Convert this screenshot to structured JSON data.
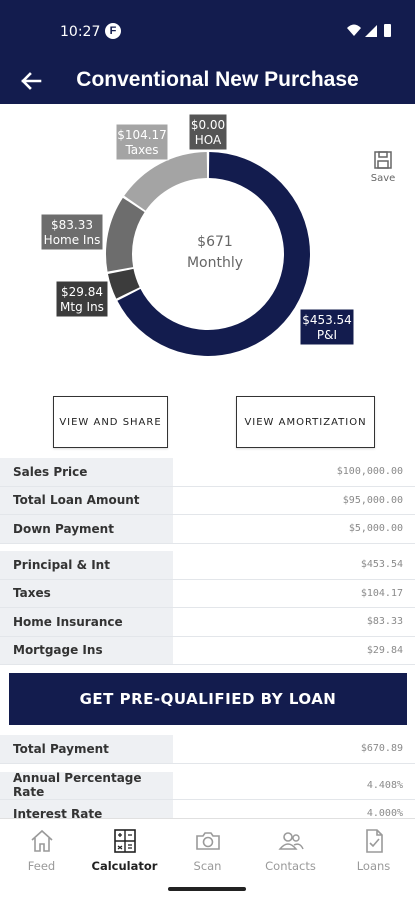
{
  "status_bar": {
    "time": "10:27",
    "app_icon_letter": "F"
  },
  "header": {
    "title": "Conventional New Purchase"
  },
  "chart_data": {
    "type": "pie",
    "center_amount": "$671",
    "center_label": "Monthly",
    "slices": [
      {
        "label": "P&I",
        "value_text": "$453.54",
        "value": 453.54,
        "color": "#131c4e"
      },
      {
        "label": "Mtg Ins",
        "value_text": "$29.84",
        "value": 29.84,
        "color": "#3c3c3c"
      },
      {
        "label": "Home Ins",
        "value_text": "$83.33",
        "value": 83.33,
        "color": "#6d6d6d"
      },
      {
        "label": "Taxes",
        "value_text": "$104.17",
        "value": 104.17,
        "color": "#a4a4a4"
      },
      {
        "label": "HOA",
        "value_text": "$0.00",
        "value": 0.0,
        "color": "#555555"
      }
    ]
  },
  "save": {
    "label": "Save"
  },
  "actions": {
    "view_share": "VIEW AND SHARE",
    "view_amortization": "VIEW AMORTIZATION"
  },
  "loan_table": [
    {
      "label": "Sales Price",
      "value": "$100,000.00"
    },
    {
      "label": "Total Loan Amount",
      "value": "$95,000.00"
    },
    {
      "label": "Down Payment",
      "value": "$5,000.00"
    }
  ],
  "payment_table": [
    {
      "label": "Principal & Int",
      "value": "$453.54"
    },
    {
      "label": "Taxes",
      "value": "$104.17"
    },
    {
      "label": "Home Insurance",
      "value": "$83.33"
    },
    {
      "label": "Mortgage Ins",
      "value": "$29.84"
    }
  ],
  "prequal": {
    "label": "GET PRE-QUALIFIED BY LOAN"
  },
  "summary_table": [
    {
      "label": "Total Payment",
      "value": "$670.89"
    },
    {
      "label": "Annual Percentage Rate",
      "value": "4.408%"
    },
    {
      "label": "Interest Rate",
      "value": "4.000%"
    }
  ],
  "nav": [
    {
      "label": "Feed",
      "icon": "home-icon"
    },
    {
      "label": "Calculator",
      "icon": "calculator-icon"
    },
    {
      "label": "Scan",
      "icon": "camera-icon"
    },
    {
      "label": "Contacts",
      "icon": "contacts-icon"
    },
    {
      "label": "Loans",
      "icon": "document-check-icon"
    }
  ],
  "colors": {
    "primary": "#131c4e",
    "label_bg": "#eef0f3"
  }
}
